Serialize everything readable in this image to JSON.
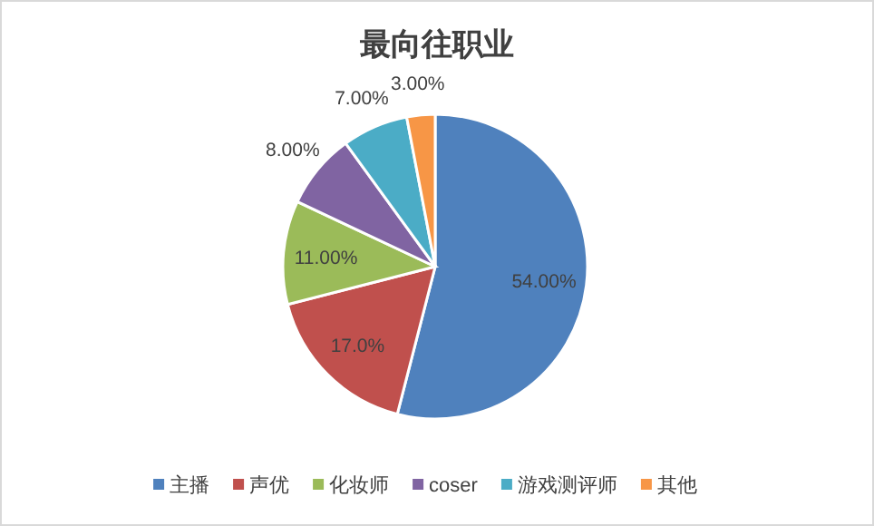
{
  "chart_data": {
    "type": "pie",
    "title": "最向往职业",
    "categories": [
      "主播",
      "声优",
      "化妆师",
      "coser",
      "游戏测评师",
      "其他"
    ],
    "values": [
      54,
      17,
      11,
      8,
      7,
      3
    ],
    "colors": [
      "#4f81bd",
      "#c0504d",
      "#9bbb59",
      "#8064a2",
      "#4bacc6",
      "#f79646"
    ],
    "value_labels": [
      "54.00%",
      "17.0%",
      "11.00%",
      "8.00%",
      "7.00%",
      "3.00%"
    ],
    "legend": "bottom"
  }
}
